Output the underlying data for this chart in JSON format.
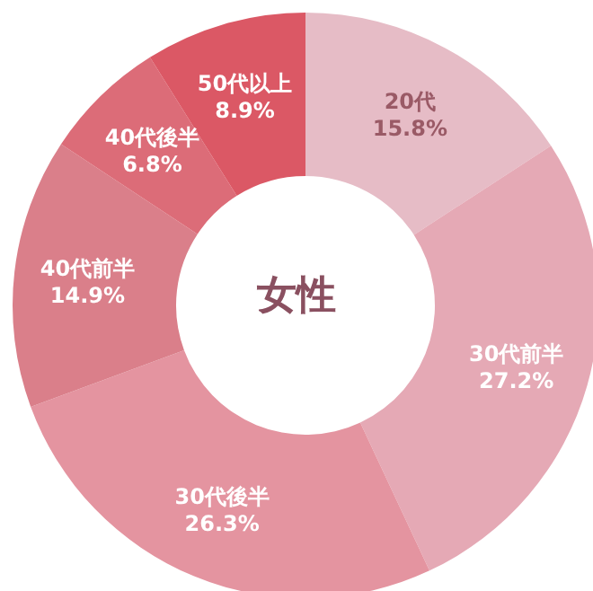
{
  "chart_data": {
    "type": "donut",
    "categories": [
      "20代",
      "30代前半",
      "30代後半",
      "40代前半",
      "40代後半",
      "50代以上"
    ],
    "values": [
      15.8,
      27.2,
      26.3,
      14.9,
      6.8,
      8.9
    ],
    "value_labels": [
      "15.8%",
      "27.2%",
      "26.3%",
      "14.9%",
      "6.8%",
      "8.9%"
    ],
    "colors": [
      "#e6bcc6",
      "#e5a9b5",
      "#e494a0",
      "#da7f8a",
      "#dc6c78",
      "#db5865"
    ],
    "annotations": [
      "女性"
    ]
  }
}
